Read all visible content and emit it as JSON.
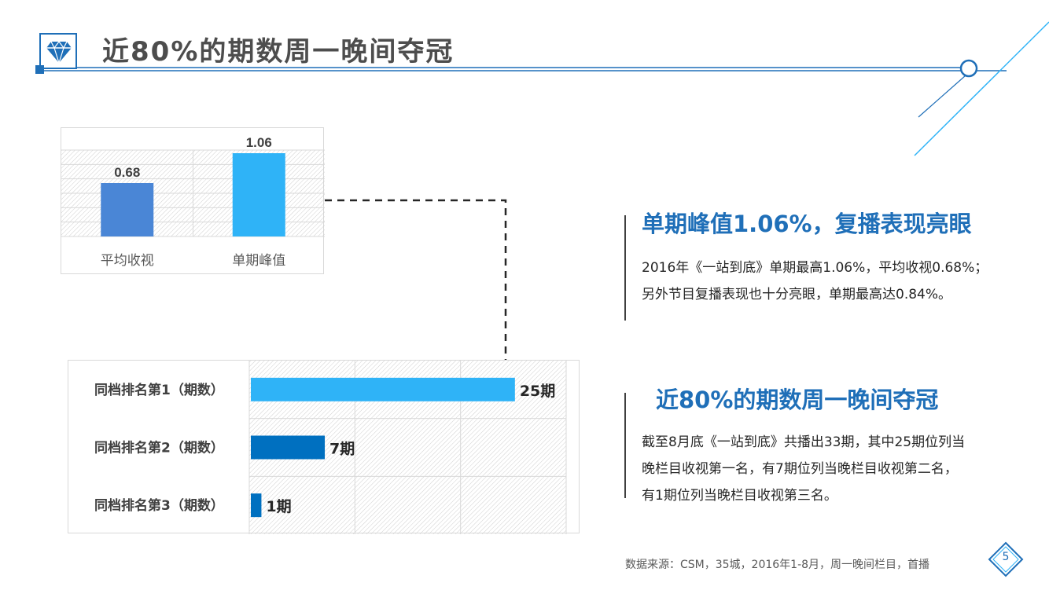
{
  "header": {
    "title": "近80%的期数周一晚间夺冠"
  },
  "colors": {
    "accent": "#1f6fb8",
    "bar_light": "#2fb3f7",
    "bar_mid": "#4a86d6",
    "bar_dark": "#0070c0"
  },
  "chart_data": [
    {
      "type": "bar",
      "categories": [
        "平均收视",
        "单期峰值"
      ],
      "values": [
        0.68,
        1.06
      ],
      "data_labels": [
        "0.68",
        "1.06"
      ],
      "ylim": [
        0,
        1.1
      ],
      "grid": true
    },
    {
      "type": "bar",
      "orientation": "horizontal",
      "categories": [
        "同档排名第1（期数）",
        "同档排名第2（期数）",
        "同档排名第3（期数）"
      ],
      "values": [
        25,
        7,
        1
      ],
      "data_labels": [
        "25期",
        "7期",
        "1期"
      ],
      "xlim": [
        0,
        30
      ],
      "grid": true
    }
  ],
  "block1": {
    "heading": "单期峰值1.06%，复播表现亮眼",
    "lines": [
      "2016年《一站到底》单期最高1.06%，平均收视0.68%；",
      "另外节目复播表现也十分亮眼，单期最高达0.84%。"
    ]
  },
  "block2": {
    "heading": "近80%的期数周一晚间夺冠",
    "lines": [
      "截至8月底《一站到底》共播出33期，其中25期位列当",
      "晚栏目收视第一名，有7期位列当晚栏目收视第二名，",
      "有1期位列当晚栏目收视第三名。"
    ]
  },
  "footer": {
    "source": "数据来源：CSM，35城，2016年1-8月，周一晚间栏目，首播",
    "page_number": "5"
  }
}
